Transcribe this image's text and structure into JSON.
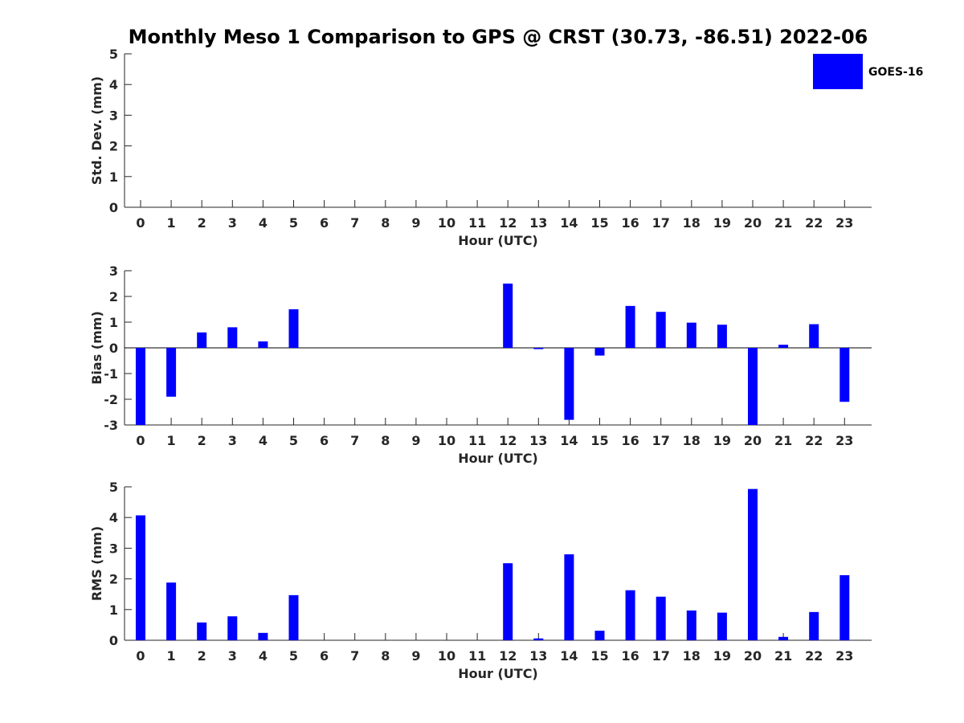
{
  "chart_data": {
    "title": "Monthly Meso 1 Comparison to GPS @ CRST (30.73, -86.51) 2022-06",
    "legend": {
      "label": "GOES-16",
      "color": "#0000ff",
      "placement": "top-right"
    },
    "type": "bar",
    "categories": [
      "0",
      "1",
      "2",
      "3",
      "4",
      "5",
      "6",
      "7",
      "8",
      "9",
      "10",
      "11",
      "12",
      "13",
      "14",
      "15",
      "16",
      "17",
      "18",
      "19",
      "20",
      "21",
      "22",
      "23"
    ],
    "panels": [
      {
        "ylabel": "Std. Dev. (mm)",
        "xlabel": "Hour (UTC)",
        "ylim": [
          0,
          5
        ],
        "yticks": [
          "0",
          "1",
          "2",
          "3",
          "4",
          "5"
        ],
        "series": [
          {
            "name": "GOES-16",
            "values": [
              null,
              null,
              null,
              null,
              null,
              null,
              null,
              null,
              null,
              null,
              null,
              null,
              null,
              null,
              null,
              null,
              null,
              null,
              null,
              null,
              null,
              null,
              null,
              null
            ]
          }
        ]
      },
      {
        "ylabel": "Bias (mm)",
        "xlabel": "Hour (UTC)",
        "ylim": [
          -3,
          3
        ],
        "yticks": [
          "-3",
          "-2",
          "-1",
          "0",
          "1",
          "2",
          "3"
        ],
        "zero_line": true,
        "series": [
          {
            "name": "GOES-16",
            "values": [
              -3.0,
              -1.9,
              0.6,
              0.8,
              0.25,
              1.5,
              null,
              null,
              null,
              null,
              null,
              null,
              2.5,
              -0.05,
              -2.8,
              -0.3,
              1.63,
              1.4,
              0.98,
              0.9,
              -3.0,
              0.12,
              0.92,
              -2.1
            ]
          }
        ]
      },
      {
        "ylabel": "RMS (mm)",
        "xlabel": "Hour (UTC)",
        "ylim": [
          0,
          5
        ],
        "yticks": [
          "0",
          "1",
          "2",
          "3",
          "4",
          "5"
        ],
        "series": [
          {
            "name": "GOES-16",
            "values": [
              4.07,
              1.88,
              0.58,
              0.78,
              0.24,
              1.47,
              null,
              null,
              null,
              null,
              null,
              null,
              2.51,
              0.06,
              2.8,
              0.31,
              1.63,
              1.42,
              0.97,
              0.9,
              4.93,
              0.11,
              0.92,
              2.12
            ]
          }
        ]
      }
    ]
  }
}
